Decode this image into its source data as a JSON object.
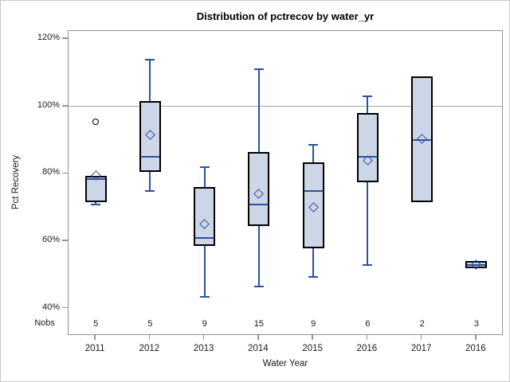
{
  "chart_data": {
    "type": "box",
    "title": "Distribution of pctrecov by water_yr",
    "xlabel": "Water Year",
    "ylabel": "Pct Recovery",
    "nobs_label": "Nobs",
    "categories": [
      "2011",
      "2012",
      "2013",
      "2014",
      "2015",
      "2016",
      "2017",
      "2016"
    ],
    "nobs": [
      5,
      5,
      9,
      15,
      9,
      6,
      2,
      3
    ],
    "ylim": [
      31.9,
      122.4
    ],
    "reference_line": 100,
    "grid": "reference line at 100% only",
    "legend": "none",
    "y_axis": {
      "ticks": [
        {
          "value": 40,
          "label": "40%"
        },
        {
          "value": 60,
          "label": "60%"
        },
        {
          "value": 80,
          "label": "80%"
        },
        {
          "value": 100,
          "label": "100%"
        },
        {
          "value": 120,
          "label": "120%"
        }
      ]
    },
    "series": [
      {
        "category": "2011",
        "whisker_low": 71,
        "q1": 71.5,
        "median": 78.5,
        "q3": 79.5,
        "whisker_high": 79.5,
        "mean": 79.5,
        "outliers": [
          95.5
        ]
      },
      {
        "category": "2012",
        "whisker_low": 75,
        "q1": 80.5,
        "median": 85,
        "q3": 101.5,
        "whisker_high": 114,
        "mean": 91.5,
        "outliers": []
      },
      {
        "category": "2013",
        "whisker_low": 43.5,
        "q1": 58.5,
        "median": 61,
        "q3": 76,
        "whisker_high": 82,
        "mean": 65,
        "outliers": []
      },
      {
        "category": "2014",
        "whisker_low": 46.5,
        "q1": 64.5,
        "median": 71,
        "q3": 86.5,
        "whisker_high": 111,
        "mean": 74,
        "outliers": []
      },
      {
        "category": "2015",
        "whisker_low": 49.5,
        "q1": 58,
        "median": 75,
        "q3": 83.5,
        "whisker_high": 88.5,
        "mean": 70,
        "outliers": []
      },
      {
        "category": "2016",
        "whisker_low": 53,
        "q1": 77.5,
        "median": 85,
        "q3": 98,
        "whisker_high": 103,
        "mean": 84,
        "outliers": []
      },
      {
        "category": "2017",
        "whisker_low": 71.5,
        "q1": 71.5,
        "median": 90,
        "q3": 109,
        "whisker_high": 109,
        "mean": 90.5,
        "outliers": []
      },
      {
        "category": "2016",
        "whisker_low": 52,
        "q1": 52,
        "median": 53,
        "q3": 54,
        "whisker_high": 54,
        "mean": 53,
        "outliers": []
      }
    ],
    "colors": {
      "box_fill": "#cdd6e7",
      "box_border": "#000000",
      "line_blue": "#2a52a0",
      "outlier": "#000000",
      "reference_grid": "#a8a8a8",
      "axis": "#8e9499",
      "text": "#1a1a1a"
    }
  }
}
